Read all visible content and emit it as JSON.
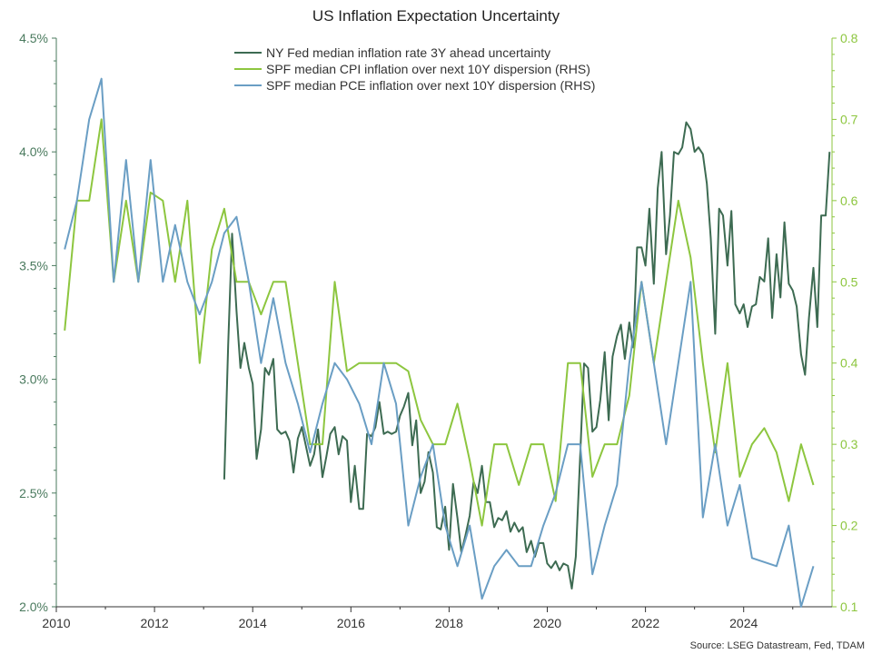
{
  "chart_data": {
    "type": "line",
    "title": "US Inflation Expectation Uncertainty",
    "source": "Source: LSEG Datastream, Fed, TDAM",
    "x_axis": {
      "min": 2010,
      "max": 2025.8,
      "tick_values": [
        2010,
        2012,
        2014,
        2016,
        2018,
        2020,
        2022,
        2024
      ],
      "tick_labels": [
        "2010",
        "2012",
        "2014",
        "2016",
        "2018",
        "2020",
        "2022",
        "2024"
      ]
    },
    "y_left": {
      "min": 2.0,
      "max": 4.5,
      "tick_values": [
        2.0,
        2.5,
        3.0,
        3.5,
        4.0,
        4.5
      ],
      "tick_labels": [
        "2.0%",
        "2.5%",
        "3.0%",
        "3.5%",
        "4.0%",
        "4.5%"
      ]
    },
    "y_right": {
      "min": 0.1,
      "max": 0.8,
      "tick_values": [
        0.1,
        0.2,
        0.3,
        0.4,
        0.5,
        0.6,
        0.7,
        0.8
      ],
      "tick_labels": [
        "0.1",
        "0.2",
        "0.3",
        "0.4",
        "0.5",
        "0.6",
        "0.7",
        "0.8"
      ]
    },
    "legend_position": "top-center",
    "series": [
      {
        "name": "NY Fed median inflation rate 3Y ahead uncertainty",
        "axis": "left",
        "color": "#3d6b52",
        "points": [
          [
            2013.42,
            2.56
          ],
          [
            2013.5,
            3.15
          ],
          [
            2013.58,
            3.64
          ],
          [
            2013.67,
            3.3
          ],
          [
            2013.75,
            3.05
          ],
          [
            2013.83,
            3.16
          ],
          [
            2013.92,
            3.05
          ],
          [
            2014.0,
            2.98
          ],
          [
            2014.08,
            2.65
          ],
          [
            2014.17,
            2.78
          ],
          [
            2014.25,
            3.05
          ],
          [
            2014.33,
            3.02
          ],
          [
            2014.42,
            3.09
          ],
          [
            2014.5,
            2.78
          ],
          [
            2014.58,
            2.76
          ],
          [
            2014.67,
            2.77
          ],
          [
            2014.75,
            2.73
          ],
          [
            2014.83,
            2.59
          ],
          [
            2014.92,
            2.74
          ],
          [
            2015.0,
            2.79
          ],
          [
            2015.08,
            2.71
          ],
          [
            2015.17,
            2.62
          ],
          [
            2015.25,
            2.67
          ],
          [
            2015.33,
            2.78
          ],
          [
            2015.42,
            2.57
          ],
          [
            2015.5,
            2.66
          ],
          [
            2015.58,
            2.76
          ],
          [
            2015.67,
            2.79
          ],
          [
            2015.75,
            2.67
          ],
          [
            2015.83,
            2.75
          ],
          [
            2015.92,
            2.73
          ],
          [
            2016.0,
            2.46
          ],
          [
            2016.08,
            2.62
          ],
          [
            2016.17,
            2.43
          ],
          [
            2016.25,
            2.43
          ],
          [
            2016.33,
            2.76
          ],
          [
            2016.42,
            2.75
          ],
          [
            2016.5,
            2.79
          ],
          [
            2016.58,
            2.9
          ],
          [
            2016.67,
            2.76
          ],
          [
            2016.75,
            2.77
          ],
          [
            2016.83,
            2.76
          ],
          [
            2016.92,
            2.77
          ],
          [
            2017.0,
            2.84
          ],
          [
            2017.08,
            2.88
          ],
          [
            2017.17,
            2.94
          ],
          [
            2017.25,
            2.71
          ],
          [
            2017.33,
            2.82
          ],
          [
            2017.42,
            2.5
          ],
          [
            2017.5,
            2.55
          ],
          [
            2017.58,
            2.68
          ],
          [
            2017.67,
            2.59
          ],
          [
            2017.75,
            2.35
          ],
          [
            2017.83,
            2.34
          ],
          [
            2017.92,
            2.44
          ],
          [
            2018.0,
            2.25
          ],
          [
            2018.08,
            2.54
          ],
          [
            2018.17,
            2.39
          ],
          [
            2018.25,
            2.24
          ],
          [
            2018.33,
            2.31
          ],
          [
            2018.42,
            2.4
          ],
          [
            2018.5,
            2.55
          ],
          [
            2018.58,
            2.5
          ],
          [
            2018.67,
            2.62
          ],
          [
            2018.75,
            2.46
          ],
          [
            2018.83,
            2.46
          ],
          [
            2018.92,
            2.35
          ],
          [
            2019.0,
            2.39
          ],
          [
            2019.08,
            2.38
          ],
          [
            2019.17,
            2.42
          ],
          [
            2019.25,
            2.33
          ],
          [
            2019.33,
            2.37
          ],
          [
            2019.42,
            2.33
          ],
          [
            2019.5,
            2.35
          ],
          [
            2019.58,
            2.24
          ],
          [
            2019.67,
            2.29
          ],
          [
            2019.75,
            2.22
          ],
          [
            2019.83,
            2.28
          ],
          [
            2019.92,
            2.28
          ],
          [
            2020.0,
            2.19
          ],
          [
            2020.08,
            2.17
          ],
          [
            2020.17,
            2.2
          ],
          [
            2020.25,
            2.16
          ],
          [
            2020.33,
            2.19
          ],
          [
            2020.42,
            2.18
          ],
          [
            2020.5,
            2.08
          ],
          [
            2020.58,
            2.22
          ],
          [
            2020.67,
            2.66
          ],
          [
            2020.75,
            3.07
          ],
          [
            2020.83,
            3.05
          ],
          [
            2020.92,
            2.77
          ],
          [
            2021.0,
            2.79
          ],
          [
            2021.08,
            2.91
          ],
          [
            2021.17,
            3.12
          ],
          [
            2021.25,
            2.82
          ],
          [
            2021.33,
            3.1
          ],
          [
            2021.42,
            3.19
          ],
          [
            2021.5,
            3.24
          ],
          [
            2021.58,
            3.09
          ],
          [
            2021.67,
            3.25
          ],
          [
            2021.75,
            3.14
          ],
          [
            2021.83,
            3.58
          ],
          [
            2021.92,
            3.58
          ],
          [
            2022.0,
            3.5
          ],
          [
            2022.08,
            3.75
          ],
          [
            2022.17,
            3.42
          ],
          [
            2022.25,
            3.84
          ],
          [
            2022.33,
            4.0
          ],
          [
            2022.42,
            3.55
          ],
          [
            2022.5,
            3.72
          ],
          [
            2022.58,
            4.0
          ],
          [
            2022.67,
            3.99
          ],
          [
            2022.75,
            4.02
          ],
          [
            2022.83,
            4.13
          ],
          [
            2022.92,
            4.1
          ],
          [
            2023.0,
            4.0
          ],
          [
            2023.08,
            4.02
          ],
          [
            2023.17,
            3.99
          ],
          [
            2023.25,
            3.86
          ],
          [
            2023.33,
            3.62
          ],
          [
            2023.42,
            3.2
          ],
          [
            2023.5,
            3.75
          ],
          [
            2023.58,
            3.72
          ],
          [
            2023.67,
            3.5
          ],
          [
            2023.75,
            3.74
          ],
          [
            2023.83,
            3.33
          ],
          [
            2023.92,
            3.29
          ],
          [
            2024.0,
            3.33
          ],
          [
            2024.08,
            3.23
          ],
          [
            2024.17,
            3.32
          ],
          [
            2024.25,
            3.33
          ],
          [
            2024.33,
            3.45
          ],
          [
            2024.42,
            3.43
          ],
          [
            2024.5,
            3.62
          ],
          [
            2024.58,
            3.27
          ],
          [
            2024.67,
            3.55
          ],
          [
            2024.75,
            3.36
          ],
          [
            2024.83,
            3.69
          ],
          [
            2024.92,
            3.42
          ],
          [
            2025.0,
            3.39
          ],
          [
            2025.08,
            3.32
          ],
          [
            2025.17,
            3.11
          ],
          [
            2025.25,
            3.02
          ],
          [
            2025.33,
            3.27
          ],
          [
            2025.42,
            3.49
          ],
          [
            2025.5,
            3.23
          ],
          [
            2025.58,
            3.72
          ],
          [
            2025.67,
            3.72
          ],
          [
            2025.75,
            4.0
          ]
        ]
      },
      {
        "name": "SPF median CPI inflation over next 10Y dispersion (RHS)",
        "axis": "right",
        "color": "#8dc63f",
        "points": [
          [
            2010.17,
            0.44
          ],
          [
            2010.42,
            0.6
          ],
          [
            2010.67,
            0.6
          ],
          [
            2010.92,
            0.7
          ],
          [
            2011.17,
            0.5
          ],
          [
            2011.42,
            0.6
          ],
          [
            2011.67,
            0.5
          ],
          [
            2011.92,
            0.61
          ],
          [
            2012.17,
            0.6
          ],
          [
            2012.42,
            0.5
          ],
          [
            2012.67,
            0.6
          ],
          [
            2012.92,
            0.4
          ],
          [
            2013.17,
            0.54
          ],
          [
            2013.42,
            0.59
          ],
          [
            2013.67,
            0.5
          ],
          [
            2013.92,
            0.5
          ],
          [
            2014.17,
            0.46
          ],
          [
            2014.42,
            0.5
          ],
          [
            2014.67,
            0.5
          ],
          [
            2014.92,
            0.4
          ],
          [
            2015.17,
            0.3
          ],
          [
            2015.42,
            0.3
          ],
          [
            2015.67,
            0.5
          ],
          [
            2015.92,
            0.39
          ],
          [
            2016.17,
            0.4
          ],
          [
            2016.42,
            0.4
          ],
          [
            2016.67,
            0.4
          ],
          [
            2016.92,
            0.4
          ],
          [
            2017.17,
            0.39
          ],
          [
            2017.42,
            0.33
          ],
          [
            2017.67,
            0.3
          ],
          [
            2017.92,
            0.3
          ],
          [
            2018.17,
            0.35
          ],
          [
            2018.42,
            0.28
          ],
          [
            2018.67,
            0.2
          ],
          [
            2018.92,
            0.3
          ],
          [
            2019.17,
            0.3
          ],
          [
            2019.42,
            0.25
          ],
          [
            2019.67,
            0.3
          ],
          [
            2019.92,
            0.3
          ],
          [
            2020.17,
            0.23
          ],
          [
            2020.42,
            0.4
          ],
          [
            2020.67,
            0.4
          ],
          [
            2020.92,
            0.26
          ],
          [
            2021.17,
            0.3
          ],
          [
            2021.42,
            0.3
          ],
          [
            2021.67,
            0.36
          ],
          [
            2021.92,
            0.5
          ],
          [
            2022.17,
            0.4
          ],
          [
            2022.42,
            0.5
          ],
          [
            2022.67,
            0.6
          ],
          [
            2022.92,
            0.53
          ],
          [
            2023.17,
            0.4
          ],
          [
            2023.42,
            0.29
          ],
          [
            2023.67,
            0.4
          ],
          [
            2023.92,
            0.26
          ],
          [
            2024.17,
            0.3
          ],
          [
            2024.42,
            0.32
          ],
          [
            2024.67,
            0.29
          ],
          [
            2024.92,
            0.23
          ],
          [
            2025.17,
            0.3
          ],
          [
            2025.42,
            0.25
          ]
        ]
      },
      {
        "name": "SPF median PCE inflation over next 10Y dispersion (RHS)",
        "axis": "right",
        "color": "#6a9ec4",
        "points": [
          [
            2010.17,
            0.54
          ],
          [
            2010.42,
            0.6
          ],
          [
            2010.67,
            0.7
          ],
          [
            2010.92,
            0.75
          ],
          [
            2011.17,
            0.5
          ],
          [
            2011.42,
            0.65
          ],
          [
            2011.67,
            0.5
          ],
          [
            2011.92,
            0.65
          ],
          [
            2012.17,
            0.5
          ],
          [
            2012.42,
            0.57
          ],
          [
            2012.67,
            0.5
          ],
          [
            2012.92,
            0.46
          ],
          [
            2013.17,
            0.5
          ],
          [
            2013.42,
            0.56
          ],
          [
            2013.67,
            0.58
          ],
          [
            2013.92,
            0.5
          ],
          [
            2014.17,
            0.4
          ],
          [
            2014.42,
            0.48
          ],
          [
            2014.67,
            0.4
          ],
          [
            2014.92,
            0.35
          ],
          [
            2015.17,
            0.29
          ],
          [
            2015.42,
            0.35
          ],
          [
            2015.67,
            0.4
          ],
          [
            2015.92,
            0.38
          ],
          [
            2016.17,
            0.35
          ],
          [
            2016.42,
            0.3
          ],
          [
            2016.67,
            0.4
          ],
          [
            2016.92,
            0.35
          ],
          [
            2017.17,
            0.2
          ],
          [
            2017.42,
            0.26
          ],
          [
            2017.67,
            0.3
          ],
          [
            2017.92,
            0.2
          ],
          [
            2018.17,
            0.15
          ],
          [
            2018.42,
            0.2
          ],
          [
            2018.67,
            0.11
          ],
          [
            2018.92,
            0.15
          ],
          [
            2019.17,
            0.17
          ],
          [
            2019.42,
            0.15
          ],
          [
            2019.67,
            0.15
          ],
          [
            2019.92,
            0.2
          ],
          [
            2020.17,
            0.24
          ],
          [
            2020.42,
            0.3
          ],
          [
            2020.67,
            0.3
          ],
          [
            2020.92,
            0.14
          ],
          [
            2021.17,
            0.2
          ],
          [
            2021.42,
            0.25
          ],
          [
            2021.67,
            0.4
          ],
          [
            2021.92,
            0.5
          ],
          [
            2022.17,
            0.4
          ],
          [
            2022.42,
            0.3
          ],
          [
            2022.67,
            0.4
          ],
          [
            2022.92,
            0.5
          ],
          [
            2023.17,
            0.21
          ],
          [
            2023.42,
            0.3
          ],
          [
            2023.67,
            0.2
          ],
          [
            2023.92,
            0.25
          ],
          [
            2024.17,
            0.16
          ],
          [
            2024.42,
            0.155
          ],
          [
            2024.67,
            0.15
          ],
          [
            2024.92,
            0.2
          ],
          [
            2025.17,
            0.1
          ],
          [
            2025.42,
            0.15
          ]
        ]
      }
    ]
  }
}
